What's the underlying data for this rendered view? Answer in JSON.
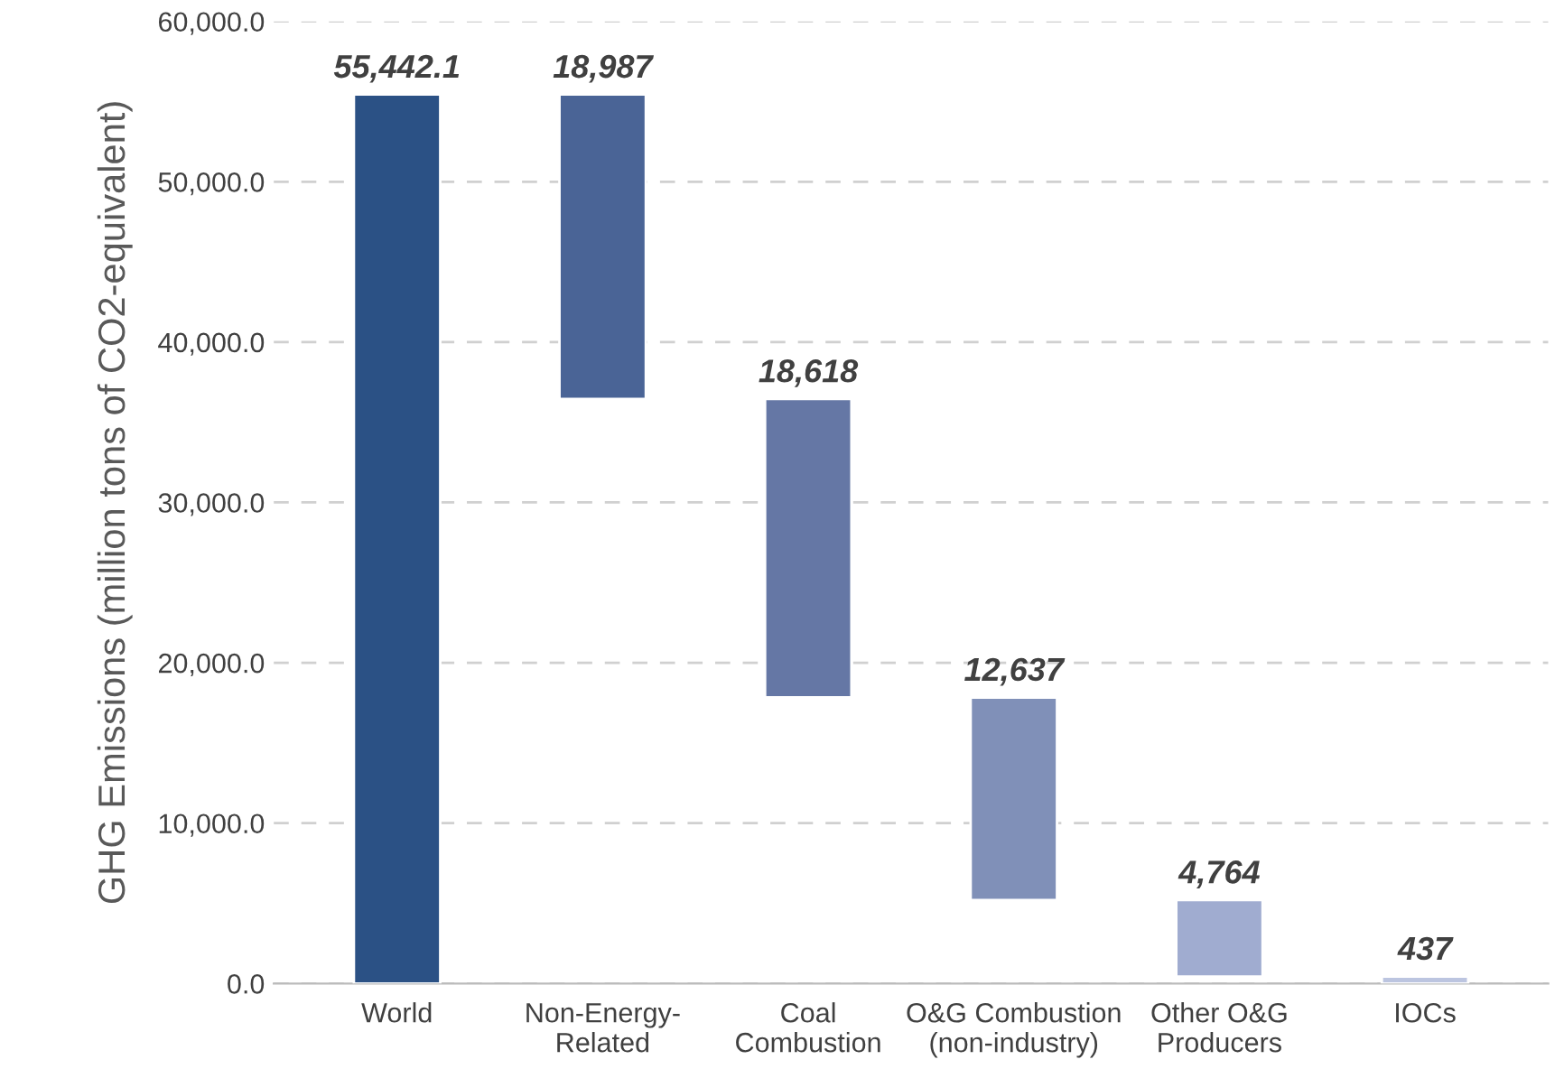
{
  "chart_data": {
    "type": "bar",
    "ylabel": "GHG Emissions (million tons of CO2-equivalent)",
    "categories": [
      "World",
      "Non-Energy-\nRelated",
      "Coal\nCombustion",
      "O&G Combustion\n(non-industry)",
      "Other O&G\nProducers",
      "IOCs"
    ],
    "values": [
      55442.1,
      18987,
      18618,
      12637,
      4764,
      437
    ],
    "base": [
      0,
      36455.1,
      17837.1,
      5200.1,
      436.1,
      0
    ],
    "colors": [
      "#2b5185",
      "#4a6496",
      "#6577a5",
      "#8090b8",
      "#a0acd0",
      "#bcc5e0"
    ],
    "value_labels": [
      "55,442.1",
      "18,987",
      "18,618",
      "12,637",
      "4,764",
      "437"
    ],
    "ylim": [
      0,
      60000
    ],
    "yticks": [
      {
        "value": 0,
        "label": "0.0"
      },
      {
        "value": 10000,
        "label": "10,000.0"
      },
      {
        "value": 20000,
        "label": "20,000.0"
      },
      {
        "value": 30000,
        "label": "30,000.0"
      },
      {
        "value": 40000,
        "label": "40,000.0"
      },
      {
        "value": 50000,
        "label": "50,000.0"
      },
      {
        "value": 60000,
        "label": "60,000.0"
      }
    ],
    "grid": "y",
    "legend": false
  }
}
